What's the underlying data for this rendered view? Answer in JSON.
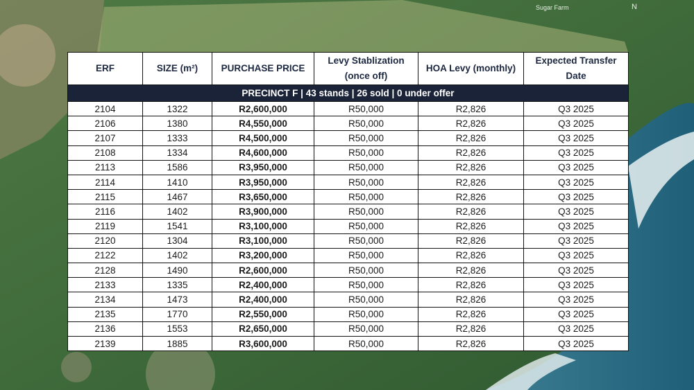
{
  "map_labels": {
    "farm": "Sugar Farm",
    "north": "N"
  },
  "table": {
    "headers": [
      "ERF",
      "SIZE (m²)",
      "PURCHASE PRICE",
      "Levy Stablization (once off)",
      "HOA Levy (monthly)",
      "Expected Transfer Date"
    ],
    "section": "PRECINCT F | 43 stands | 26 sold | 0 under offer",
    "rows": [
      [
        "2104",
        "1322",
        "R2,600,000",
        "R50,000",
        "R2,826",
        "Q3 2025"
      ],
      [
        "2106",
        "1380",
        "R4,550,000",
        "R50,000",
        "R2,826",
        "Q3 2025"
      ],
      [
        "2107",
        "1333",
        "R4,500,000",
        "R50,000",
        "R2,826",
        "Q3 2025"
      ],
      [
        "2108",
        "1334",
        "R4,600,000",
        "R50,000",
        "R2,826",
        "Q3 2025"
      ],
      [
        "2113",
        "1586",
        "R3,950,000",
        "R50,000",
        "R2,826",
        "Q3 2025"
      ],
      [
        "2114",
        "1410",
        "R3,950,000",
        "R50,000",
        "R2,826",
        "Q3 2025"
      ],
      [
        "2115",
        "1467",
        "R3,650,000",
        "R50,000",
        "R2,826",
        "Q3 2025"
      ],
      [
        "2116",
        "1402",
        "R3,900,000",
        "R50,000",
        "R2,826",
        "Q3 2025"
      ],
      [
        "2119",
        "1541",
        "R3,100,000",
        "R50,000",
        "R2,826",
        "Q3 2025"
      ],
      [
        "2120",
        "1304",
        "R3,100,000",
        "R50,000",
        "R2,826",
        "Q3 2025"
      ],
      [
        "2122",
        "1402",
        "R3,200,000",
        "R50,000",
        "R2,826",
        "Q3 2025"
      ],
      [
        "2128",
        "1490",
        "R2,600,000",
        "R50,000",
        "R2,826",
        "Q3 2025"
      ],
      [
        "2133",
        "1335",
        "R2,400,000",
        "R50,000",
        "R2,826",
        "Q3 2025"
      ],
      [
        "2134",
        "1473",
        "R2,400,000",
        "R50,000",
        "R2,826",
        "Q3 2025"
      ],
      [
        "2135",
        "1770",
        "R2,550,000",
        "R50,000",
        "R2,826",
        "Q3 2025"
      ],
      [
        "2136",
        "1553",
        "R2,650,000",
        "R50,000",
        "R2,826",
        "Q3 2025"
      ],
      [
        "2139",
        "1885",
        "R3,600,000",
        "R50,000",
        "R2,826",
        "Q3 2025"
      ]
    ]
  }
}
